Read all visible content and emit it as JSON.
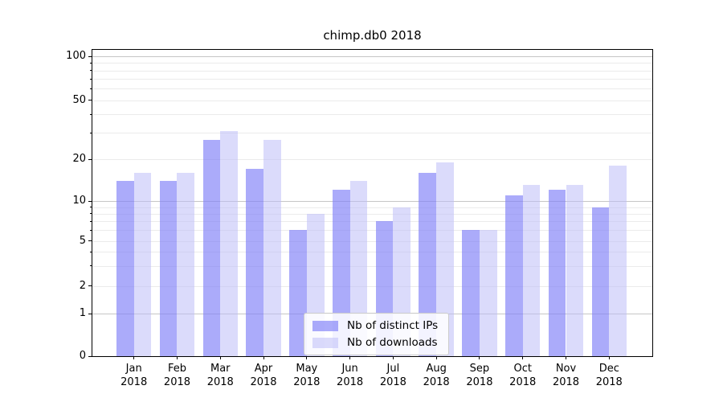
{
  "title": "chimp.db0 2018",
  "y_axis": {
    "tick_labels": [
      "100",
      "50",
      "20",
      "10",
      "5",
      "2",
      "1",
      "0"
    ]
  },
  "x_axis": {
    "months": [
      "Jan",
      "Feb",
      "Mar",
      "Apr",
      "May",
      "Jun",
      "Jul",
      "Aug",
      "Sep",
      "Oct",
      "Nov",
      "Dec"
    ],
    "year": "2018"
  },
  "chart_data": {
    "type": "bar",
    "title": "chimp.db0 2018",
    "categories": [
      "Jan 2018",
      "Feb 2018",
      "Mar 2018",
      "Apr 2018",
      "May 2018",
      "Jun 2018",
      "Jul 2018",
      "Aug 2018",
      "Sep 2018",
      "Oct 2018",
      "Nov 2018",
      "Dec 2018"
    ],
    "series": [
      {
        "name": "Nb of distinct IPs",
        "color_hex": "#a9a9f7",
        "fill_rgba": "rgba(128,128,248,0.66)",
        "values": [
          14,
          14,
          27,
          17,
          6,
          12,
          7,
          16,
          6,
          11,
          12,
          9
        ]
      },
      {
        "name": "Nb of downloads",
        "color_hex": "#dbdbfa",
        "fill_rgba": "rgba(190,190,248,0.55)",
        "values": [
          16,
          16,
          31,
          27,
          8,
          14,
          9,
          19,
          6,
          13,
          13,
          18
        ]
      }
    ],
    "yscale": "symlog",
    "y_ticks": [
      0,
      1,
      2,
      5,
      10,
      20,
      50,
      100
    ],
    "y_minor_gridlines": [
      2,
      3,
      4,
      5,
      6,
      7,
      8,
      9,
      20,
      30,
      40,
      50,
      60,
      70,
      80,
      90
    ],
    "y_major_gridlines": [
      1,
      10,
      100
    ],
    "ylim": [
      0,
      110
    ],
    "grid": true,
    "legend_position": "lower center"
  }
}
